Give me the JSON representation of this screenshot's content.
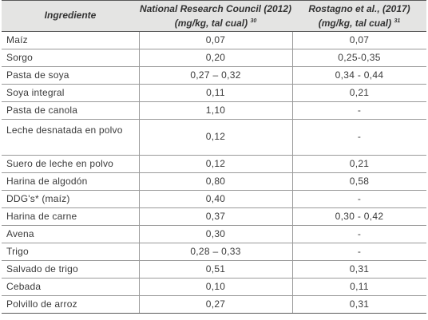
{
  "header": {
    "ingrediente": "Ingrediente",
    "nrc_line1": "National Research Council (2012)",
    "nrc_line2": "(mg/kg, tal cual)",
    "nrc_ref": "30",
    "rostagno_line1": "Rostagno et al., (2017)",
    "rostagno_line2": "(mg/kg, tal cual)",
    "rostagno_ref": "31"
  },
  "rows": [
    {
      "ingrediente": "Maíz",
      "nrc": "0,07",
      "rostagno": "0,07"
    },
    {
      "ingrediente": "Sorgo",
      "nrc": "0,20",
      "rostagno": "0,25-0,35"
    },
    {
      "ingrediente": "Pasta de soya",
      "nrc": "0,27 – 0,32",
      "rostagno": "0,34 - 0,44"
    },
    {
      "ingrediente": "Soya integral",
      "nrc": "0,11",
      "rostagno": "0,21"
    },
    {
      "ingrediente": "Pasta de canola",
      "nrc": "1,10",
      "rostagno": "-"
    },
    {
      "ingrediente": "Leche desnatada en polvo",
      "nrc": "0,12",
      "rostagno": "-"
    },
    {
      "ingrediente": "Suero de leche en polvo",
      "nrc": "0,12",
      "rostagno": "0,21"
    },
    {
      "ingrediente": "Harina de algodón",
      "nrc": "0,80",
      "rostagno": "0,58"
    },
    {
      "ingrediente": "DDG's* (maíz)",
      "nrc": "0,40",
      "rostagno": "-"
    },
    {
      "ingrediente": "Harina de carne",
      "nrc": "0,37",
      "rostagno": "0,30 - 0,42"
    },
    {
      "ingrediente": "Avena",
      "nrc": "0,30",
      "rostagno": "-"
    },
    {
      "ingrediente": "Trigo",
      "nrc": "0,28 – 0,33",
      "rostagno": "-"
    },
    {
      "ingrediente": "Salvado de trigo",
      "nrc": "0,51",
      "rostagno": "0,31"
    },
    {
      "ingrediente": "Cebada",
      "nrc": "0,10",
      "rostagno": "0,11"
    },
    {
      "ingrediente": "Polvillo de arroz",
      "nrc": "0,27",
      "rostagno": "0,31"
    }
  ]
}
